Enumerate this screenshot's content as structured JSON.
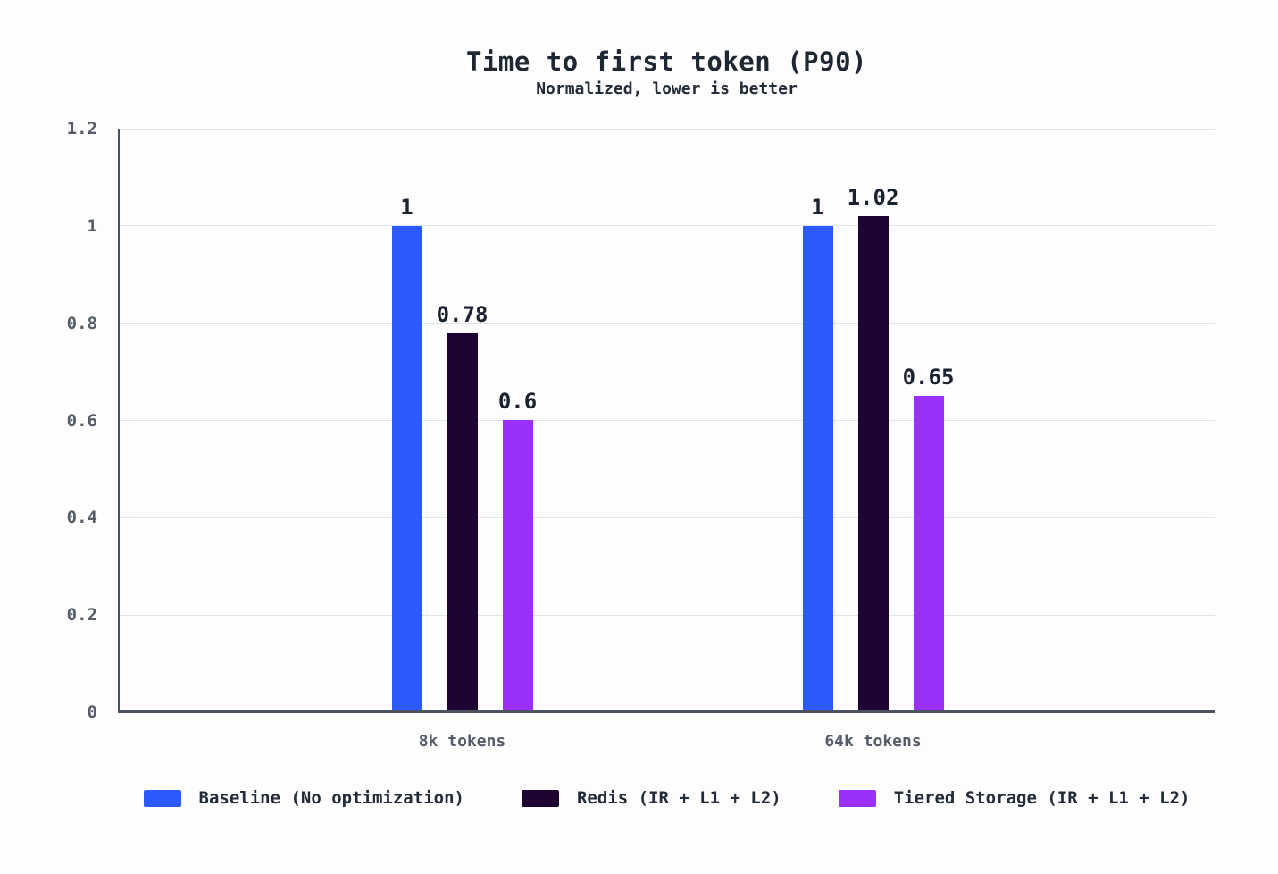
{
  "chart_data": {
    "type": "bar",
    "title": "Time to first token (P90)",
    "subtitle": "Normalized, lower is better",
    "categories": [
      "8k tokens",
      "64k tokens"
    ],
    "series": [
      {
        "name": "Baseline (No optimization)",
        "color": "#2c5afd",
        "values": [
          1,
          1
        ]
      },
      {
        "name": "Redis (IR + L1 + L2)",
        "color": "#1d0433",
        "values": [
          0.78,
          1.02
        ]
      },
      {
        "name": "Tiered Storage (IR + L1 + L2)",
        "color": "#9b30fb",
        "values": [
          0.6,
          0.65
        ]
      }
    ],
    "value_labels": [
      [
        "1",
        "0.78",
        "0.6"
      ],
      [
        "1",
        "1.02",
        "0.65"
      ]
    ],
    "y_ticks": [
      "1.2",
      "1",
      "0.8",
      "0.6",
      "0.4",
      "0.2",
      "0"
    ],
    "ylim": [
      0,
      1.2
    ],
    "grid": true,
    "legend_position": "bottom",
    "colors": {
      "axis": "#4c525e",
      "gridline": "#e2e2e9",
      "tick_text": "#565d68",
      "value_text": "#1a2230",
      "title_text": "#1f2733"
    }
  }
}
